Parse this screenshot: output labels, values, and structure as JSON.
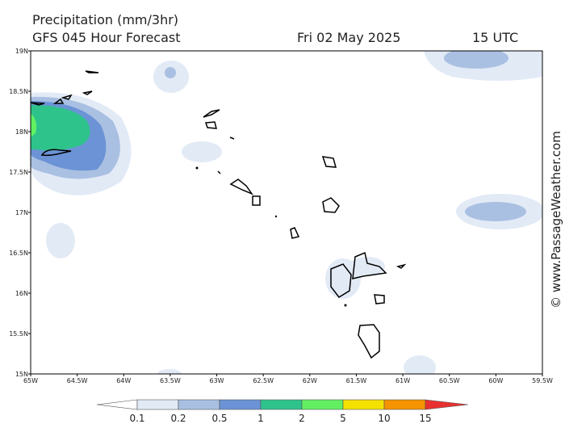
{
  "header": {
    "title": "Precipitation (mm/3hr)",
    "subtitle": "GFS 045 Hour Forecast",
    "date": "Fri 02 May 2025",
    "time": "15 UTC"
  },
  "map": {
    "lon_ticks": [
      "65W",
      "64.5W",
      "64W",
      "63.5W",
      "63W",
      "62.5W",
      "62W",
      "61.5W",
      "61W",
      "60.5W",
      "60W",
      "59.5W"
    ],
    "lat_ticks": [
      "19N",
      "18.5N",
      "18N",
      "17.5N",
      "17N",
      "16.5N",
      "16N",
      "15.5N",
      "15N"
    ]
  },
  "legend": {
    "labels": [
      "0.1",
      "0.2",
      "0.5",
      "1",
      "2",
      "5",
      "10",
      "15"
    ],
    "colors": [
      "#ffffff",
      "#e2eaf6",
      "#a9c0e2",
      "#6b93d6",
      "#2fc38c",
      "#62f062",
      "#f5e100",
      "#f59300",
      "#e83030"
    ]
  },
  "watermark": "© www.PassageWeather.com"
}
